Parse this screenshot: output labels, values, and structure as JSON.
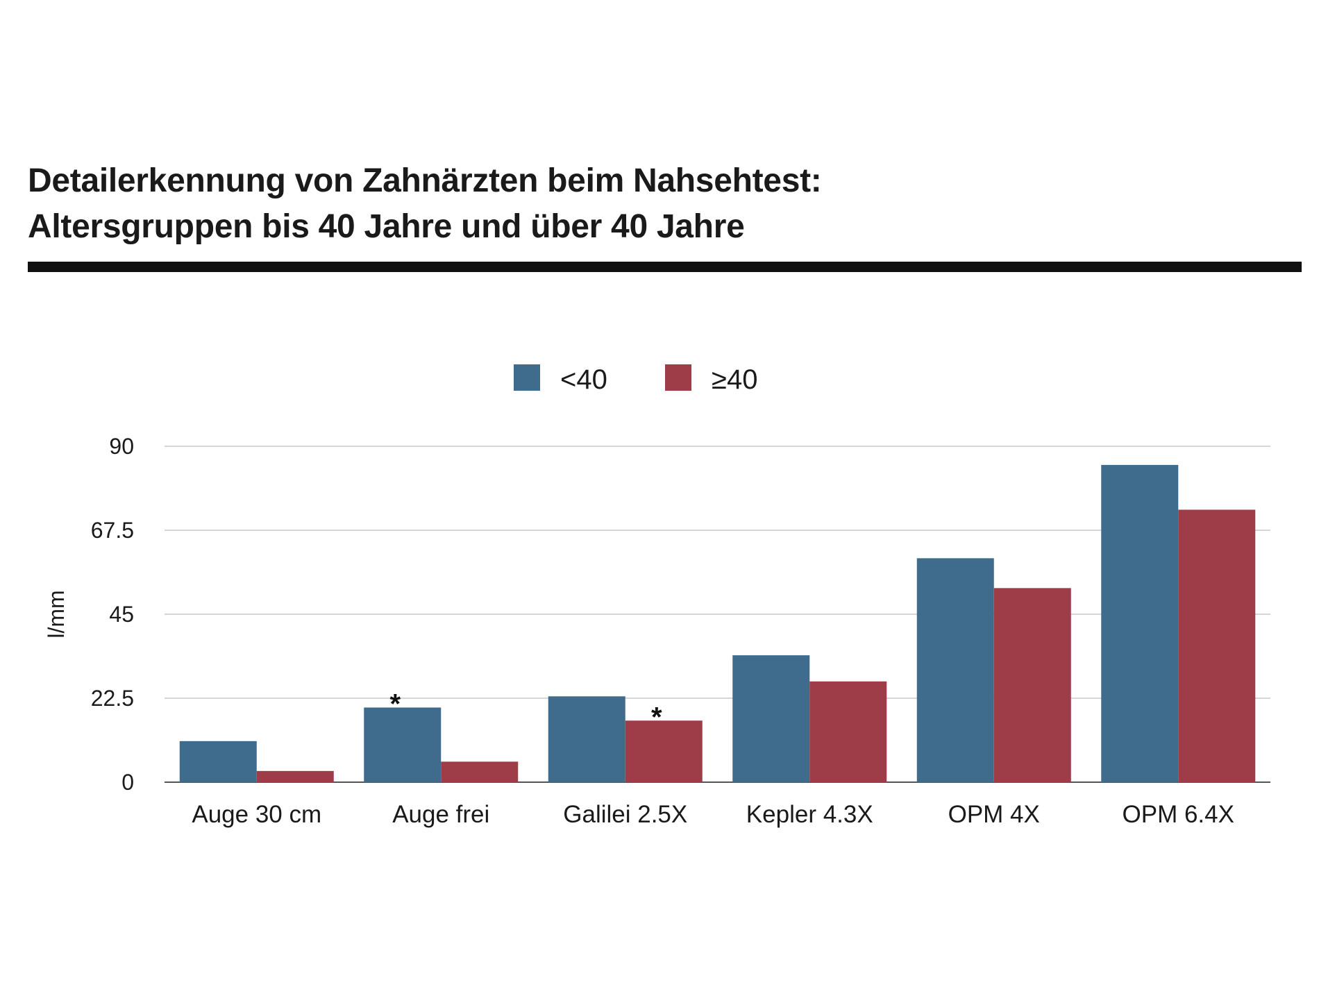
{
  "title_lines": [
    "Detailerkennung von Zahnärzten beim Nahsehtest:",
    "Altersgruppen bis 40 Jahre und über 40 Jahre"
  ],
  "colors": {
    "series_under_40": "#3f6c8d",
    "series_40_plus": "#9e3c48",
    "grid": "#c8c8c8",
    "rule": "#111111"
  },
  "chart_data": {
    "type": "bar",
    "title": "Detailerkennung von Zahnärzten beim Nahsehtest: Altersgruppen bis 40 Jahre und über 40 Jahre",
    "categories": [
      "Auge 30 cm",
      "Auge frei",
      "Galilei 2.5X",
      "Kepler 4.3X",
      "OPM 4X",
      "OPM 6.4X"
    ],
    "series": [
      {
        "name": "<40",
        "color": "#3f6c8d",
        "values": [
          11,
          20,
          23,
          34,
          60,
          85
        ]
      },
      {
        "name": "≥40",
        "color": "#9e3c48",
        "values": [
          3,
          5.5,
          16.5,
          27,
          52,
          73
        ]
      }
    ],
    "annotations": [
      {
        "category": "Auge frei",
        "series": "<40",
        "text": "*"
      },
      {
        "category": "Galilei 2.5X",
        "series": "≥40",
        "text": "*"
      }
    ],
    "xlabel": "",
    "ylabel": "l/mm",
    "ylim": [
      0,
      90
    ],
    "yticks": [
      0,
      22.5,
      45,
      67.5,
      90
    ],
    "ytick_labels": [
      "0",
      "22.5",
      "45",
      "67.5",
      "90"
    ],
    "grid": true,
    "legend": "top-center"
  }
}
